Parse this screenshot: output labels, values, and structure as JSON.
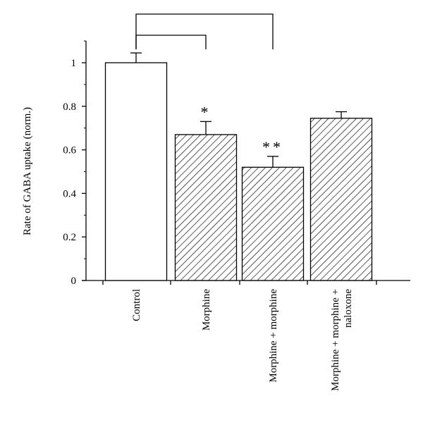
{
  "chart_data": {
    "type": "bar",
    "ylabel": "Rate of GABA uptake (norm.)",
    "ylim": [
      0,
      1.1
    ],
    "yticks": [
      {
        "value": 0,
        "label": "0"
      },
      {
        "value": 0.2,
        "label": "0.2"
      },
      {
        "value": 0.4,
        "label": "0.4"
      },
      {
        "value": 0.6,
        "label": "0.6"
      },
      {
        "value": 0.8,
        "label": "0.8"
      },
      {
        "value": 1,
        "label": "1"
      }
    ],
    "categories": [
      {
        "lines": [
          "Control"
        ]
      },
      {
        "lines": [
          "Morphine"
        ]
      },
      {
        "lines": [
          "Morphine + morphine"
        ]
      },
      {
        "lines": [
          "Morphine + morphine +",
          "naloxone"
        ]
      }
    ],
    "values": [
      1.0,
      0.67,
      0.52,
      0.745
    ],
    "errors": [
      0.045,
      0.06,
      0.05,
      0.03
    ],
    "fills": [
      "solid-white",
      "hatched",
      "hatched",
      "hatched"
    ],
    "significance": [
      "",
      "*",
      "**",
      ""
    ],
    "comparison_brackets": [
      {
        "from": 0,
        "to": 1
      },
      {
        "from": 0,
        "to": 2
      }
    ],
    "colors": {
      "stroke": "#000000",
      "bar_fill": "#ffffff",
      "hatch": "#000000"
    }
  }
}
